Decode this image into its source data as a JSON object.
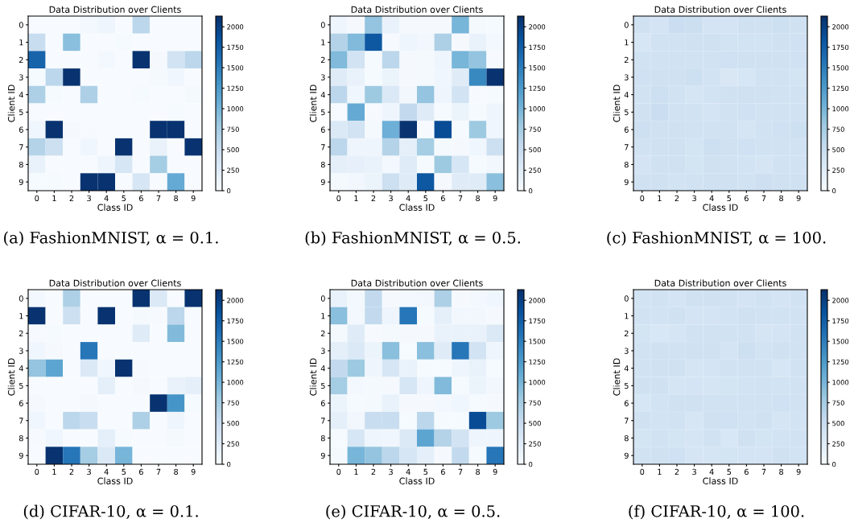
{
  "chart_data": [
    {
      "type": "heatmap",
      "title": "Data Distribution over Clients",
      "xlabel": "Class ID",
      "ylabel": "Client ID",
      "categories": [
        "0",
        "1",
        "2",
        "3",
        "4",
        "5",
        "6",
        "7",
        "8",
        "9"
      ],
      "y_categories": [
        "0",
        "1",
        "2",
        "3",
        "4",
        "5",
        "6",
        "7",
        "8",
        "9"
      ],
      "clim": [
        0,
        2130
      ],
      "cticks": [
        0,
        250,
        500,
        750,
        1000,
        1250,
        1500,
        1750,
        2000
      ],
      "annotations": [
        "(a) FashionMNIST, α = 0.1."
      ],
      "cells": [
        [
          0,
          0,
          0,
          50,
          100,
          0,
          600,
          0,
          0,
          0
        ],
        [
          500,
          0,
          900,
          0,
          0,
          20,
          0,
          0,
          0,
          0
        ],
        [
          1700,
          0,
          0,
          0,
          50,
          0,
          2100,
          30,
          400,
          600
        ],
        [
          20,
          600,
          2100,
          0,
          0,
          0,
          0,
          40,
          80,
          0
        ],
        [
          700,
          20,
          0,
          700,
          0,
          0,
          20,
          0,
          0,
          40
        ],
        [
          0,
          0,
          0,
          0,
          0,
          0,
          0,
          0,
          20,
          0
        ],
        [
          80,
          2100,
          30,
          10,
          0,
          0,
          0,
          2100,
          2100,
          0
        ],
        [
          650,
          450,
          0,
          80,
          0,
          2100,
          0,
          150,
          0,
          2100
        ],
        [
          150,
          0,
          0,
          0,
          100,
          350,
          0,
          750,
          0,
          0
        ],
        [
          20,
          20,
          0,
          2100,
          2100,
          0,
          350,
          0,
          1100,
          0
        ]
      ]
    },
    {
      "type": "heatmap",
      "title": "Data Distribution over Clients",
      "xlabel": "Class ID",
      "ylabel": "Client ID",
      "categories": [
        "0",
        "1",
        "2",
        "3",
        "4",
        "5",
        "6",
        "7",
        "8",
        "9"
      ],
      "y_categories": [
        "0",
        "1",
        "2",
        "3",
        "4",
        "5",
        "6",
        "7",
        "8",
        "9"
      ],
      "clim": [
        0,
        2130
      ],
      "cticks": [
        0,
        250,
        500,
        750,
        1000,
        1250,
        1500,
        1750,
        2000
      ],
      "annotations": [
        "(b) FashionMNIST, α = 0.5."
      ],
      "cells": [
        [
          100,
          30,
          850,
          150,
          30,
          30,
          30,
          1000,
          40,
          20
        ],
        [
          650,
          950,
          1800,
          10,
          100,
          70,
          700,
          30,
          150,
          50
        ],
        [
          950,
          400,
          20,
          600,
          30,
          40,
          100,
          1000,
          850,
          10
        ],
        [
          250,
          150,
          20,
          120,
          30,
          40,
          80,
          250,
          1400,
          2100
        ],
        [
          600,
          80,
          800,
          300,
          60,
          850,
          100,
          400,
          10,
          20
        ],
        [
          10,
          1100,
          10,
          100,
          550,
          250,
          20,
          120,
          20,
          100
        ],
        [
          300,
          400,
          40,
          1050,
          2100,
          10,
          1900,
          20,
          800,
          80
        ],
        [
          600,
          100,
          100,
          650,
          200,
          750,
          40,
          30,
          80,
          450
        ],
        [
          200,
          180,
          150,
          50,
          250,
          20,
          800,
          350,
          20,
          60
        ],
        [
          40,
          70,
          120,
          450,
          250,
          1800,
          30,
          250,
          250,
          900
        ]
      ]
    },
    {
      "type": "heatmap",
      "title": "Data Distribution over Clients",
      "xlabel": "Class ID",
      "ylabel": "Client ID",
      "categories": [
        "0",
        "1",
        "2",
        "3",
        "4",
        "5",
        "6",
        "7",
        "8",
        "9"
      ],
      "y_categories": [
        "0",
        "1",
        "2",
        "3",
        "4",
        "5",
        "6",
        "7",
        "8",
        "9"
      ],
      "clim": [
        0,
        2130
      ],
      "cticks": [
        0,
        250,
        500,
        750,
        1000,
        1250,
        1500,
        1750,
        2000
      ],
      "annotations": [
        "(c) FashionMNIST, α = 100."
      ],
      "cells": [
        [
          430,
          380,
          480,
          470,
          380,
          380,
          430,
          430,
          450,
          420
        ],
        [
          350,
          410,
          410,
          420,
          430,
          400,
          400,
          400,
          420,
          440
        ],
        [
          410,
          410,
          410,
          410,
          410,
          440,
          420,
          420,
          420,
          440
        ],
        [
          440,
          420,
          430,
          450,
          400,
          330,
          350,
          410,
          410,
          390
        ],
        [
          410,
          450,
          410,
          370,
          400,
          430,
          430,
          430,
          410,
          410
        ],
        [
          420,
          480,
          410,
          410,
          380,
          410,
          440,
          410,
          410,
          410
        ],
        [
          450,
          420,
          420,
          410,
          410,
          410,
          370,
          410,
          440,
          450
        ],
        [
          410,
          420,
          420,
          390,
          450,
          420,
          440,
          410,
          410,
          410
        ],
        [
          380,
          420,
          420,
          390,
          430,
          410,
          400,
          370,
          410,
          410
        ],
        [
          430,
          430,
          400,
          410,
          420,
          420,
          410,
          460,
          420,
          420
        ]
      ]
    },
    {
      "type": "heatmap",
      "title": "Data Distribution over Clients",
      "xlabel": "Class ID",
      "ylabel": "Client ID",
      "categories": [
        "0",
        "1",
        "2",
        "3",
        "4",
        "5",
        "6",
        "7",
        "8",
        "9"
      ],
      "y_categories": [
        "0",
        "1",
        "2",
        "3",
        "4",
        "5",
        "6",
        "7",
        "8",
        "9"
      ],
      "clim": [
        0,
        2130
      ],
      "cticks": [
        0,
        250,
        500,
        750,
        1000,
        1250,
        1500,
        1750,
        2000
      ],
      "annotations": [
        "(d) CIFAR-10, α = 0.1."
      ],
      "cells": [
        [
          50,
          0,
          700,
          0,
          0,
          0,
          2100,
          300,
          0,
          2100
        ],
        [
          2100,
          0,
          450,
          0,
          2100,
          0,
          40,
          10,
          600,
          0
        ],
        [
          10,
          20,
          0,
          0,
          0,
          0,
          250,
          0,
          950,
          0
        ],
        [
          80,
          30,
          0,
          1550,
          0,
          0,
          0,
          0,
          0,
          0
        ],
        [
          850,
          1150,
          0,
          300,
          80,
          2100,
          10,
          0,
          0,
          0
        ],
        [
          0,
          0,
          0,
          0,
          200,
          0,
          30,
          0,
          150,
          200
        ],
        [
          30,
          0,
          0,
          30,
          0,
          0,
          0,
          2100,
          1300,
          20
        ],
        [
          80,
          0,
          600,
          500,
          0,
          0,
          700,
          0,
          100,
          0
        ],
        [
          10,
          80,
          0,
          0,
          200,
          20,
          0,
          0,
          40,
          0
        ],
        [
          0,
          2100,
          1550,
          750,
          300,
          1000,
          0,
          0,
          0,
          0
        ]
      ]
    },
    {
      "type": "heatmap",
      "title": "Data Distribution over Clients",
      "xlabel": "Class ID",
      "ylabel": "Client ID",
      "categories": [
        "0",
        "1",
        "2",
        "3",
        "4",
        "5",
        "6",
        "7",
        "8",
        "9"
      ],
      "y_categories": [
        "0",
        "1",
        "2",
        "3",
        "4",
        "5",
        "6",
        "7",
        "8",
        "9"
      ],
      "clim": [
        0,
        2130
      ],
      "cticks": [
        0,
        250,
        500,
        750,
        1000,
        1250,
        1500,
        1750,
        2000
      ],
      "annotations": [
        "(e) CIFAR-10, α = 0.5."
      ],
      "cells": [
        [
          150,
          50,
          550,
          30,
          50,
          60,
          700,
          30,
          50,
          80
        ],
        [
          900,
          50,
          550,
          100,
          1550,
          20,
          200,
          70,
          60,
          30
        ],
        [
          40,
          250,
          10,
          40,
          30,
          30,
          150,
          150,
          150,
          300
        ],
        [
          200,
          300,
          120,
          900,
          20,
          900,
          250,
          1550,
          400,
          100
        ],
        [
          550,
          800,
          100,
          350,
          150,
          20,
          20,
          100,
          150,
          20
        ],
        [
          750,
          50,
          40,
          30,
          350,
          100,
          950,
          20,
          120,
          60
        ],
        [
          120,
          20,
          40,
          150,
          30,
          30,
          50,
          80,
          20,
          30
        ],
        [
          200,
          60,
          500,
          500,
          20,
          600,
          20,
          20,
          1900,
          800
        ],
        [
          20,
          350,
          100,
          80,
          300,
          1150,
          650,
          400,
          100,
          100
        ],
        [
          40,
          1000,
          850,
          600,
          350,
          200,
          30,
          550,
          20,
          1550
        ]
      ]
    },
    {
      "type": "heatmap",
      "title": "Data Distribution over Clients",
      "xlabel": "Class ID",
      "ylabel": "Client ID",
      "categories": [
        "0",
        "1",
        "2",
        "3",
        "4",
        "5",
        "6",
        "7",
        "8",
        "9"
      ],
      "y_categories": [
        "0",
        "1",
        "2",
        "3",
        "4",
        "5",
        "6",
        "7",
        "8",
        "9"
      ],
      "clim": [
        0,
        2130
      ],
      "cticks": [
        0,
        250,
        500,
        750,
        1000,
        1250,
        1500,
        1750,
        2000
      ],
      "annotations": [
        "(f) CIFAR-10, α = 100."
      ],
      "cells": [
        [
          400,
          410,
          380,
          420,
          430,
          410,
          380,
          410,
          380,
          410
        ],
        [
          410,
          400,
          420,
          380,
          380,
          400,
          420,
          410,
          410,
          410
        ],
        [
          390,
          340,
          370,
          410,
          410,
          410,
          410,
          360,
          380,
          410
        ],
        [
          410,
          420,
          410,
          420,
          430,
          380,
          450,
          400,
          430,
          410
        ],
        [
          410,
          420,
          420,
          360,
          380,
          410,
          410,
          410,
          350,
          410
        ],
        [
          420,
          430,
          370,
          380,
          360,
          390,
          400,
          410,
          400,
          410
        ],
        [
          350,
          400,
          420,
          430,
          410,
          410,
          410,
          410,
          440,
          410
        ],
        [
          420,
          400,
          410,
          350,
          420,
          440,
          400,
          420,
          370,
          400
        ],
        [
          390,
          410,
          390,
          360,
          410,
          340,
          430,
          390,
          400,
          410
        ],
        [
          410,
          420,
          440,
          370,
          360,
          390,
          380,
          380,
          430,
          400
        ]
      ]
    }
  ]
}
